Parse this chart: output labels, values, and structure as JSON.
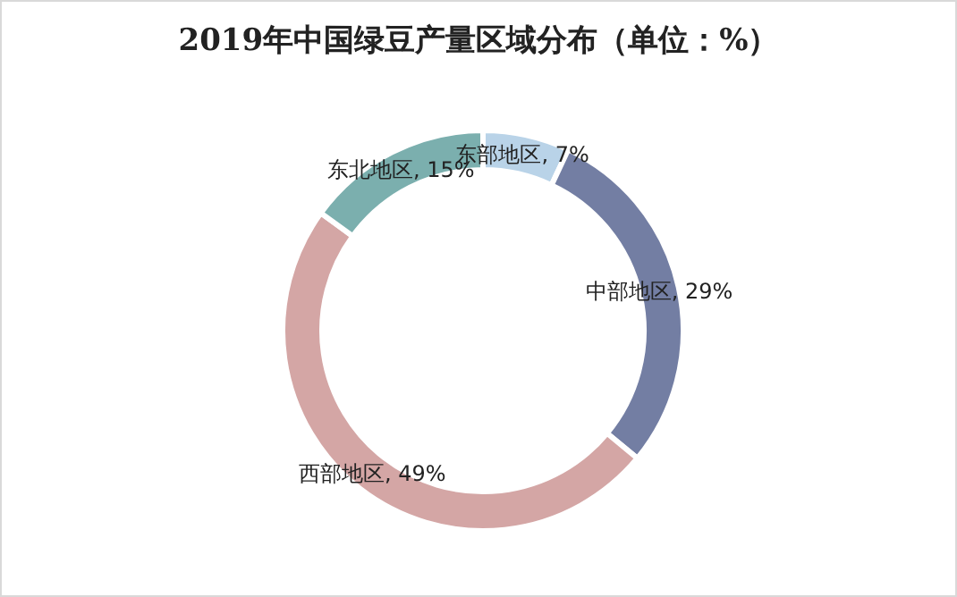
{
  "chart_data": {
    "type": "donut",
    "title": "2019年中国绿豆产量区域分布（单位：%）",
    "categories": [
      "东部地区",
      "中部地区",
      "西部地区",
      "东北地区"
    ],
    "values": [
      7,
      29,
      49,
      15
    ],
    "value_labels": [
      ", 7%",
      ", 29%",
      ", 49%",
      ", 15%"
    ],
    "colors": [
      "#b9d3e8",
      "#737ea3",
      "#d4a6a5",
      "#7bafae"
    ],
    "legend": false
  }
}
